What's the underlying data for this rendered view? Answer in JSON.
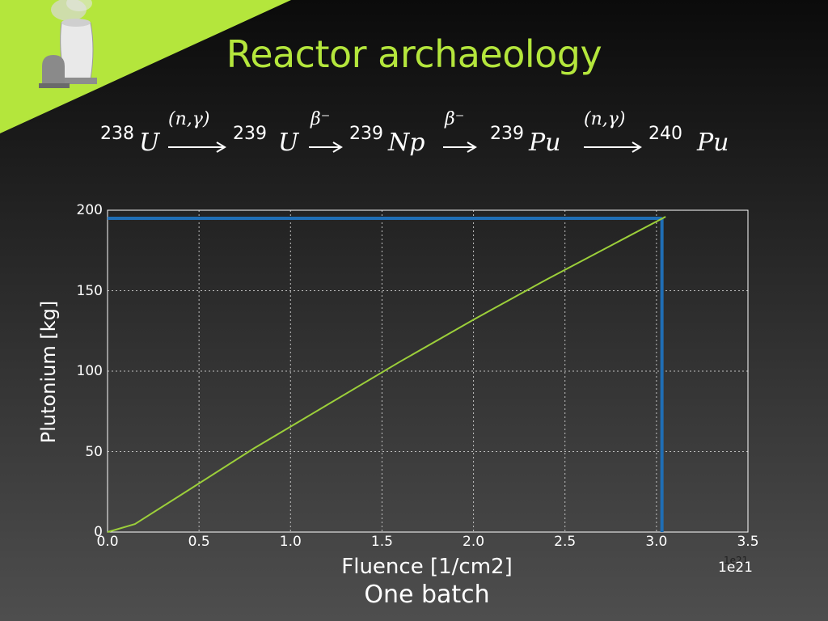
{
  "slide": {
    "title": "Reactor archaeology",
    "caption": "One batch",
    "colors": {
      "accent": "#b4e63c",
      "series": "#9ccf3a",
      "marker_lines": "#1f6eb5"
    }
  },
  "equation": {
    "terms": [
      {
        "mass": "238",
        "symbol": "U"
      },
      {
        "mass": "239",
        "symbol": "U"
      },
      {
        "mass": "239",
        "symbol": "Np"
      },
      {
        "mass": "239",
        "symbol": "Pu"
      },
      {
        "mass": "240",
        "symbol": "Pu"
      }
    ],
    "arrows": [
      "(n,γ)",
      "β⁻",
      "β⁻",
      "(n,γ)"
    ]
  },
  "chart_data": {
    "type": "line",
    "xlabel": "Fluence [1/cm2]",
    "ylabel": "Plutonium [kg]",
    "x_offset_label": "1e21",
    "x_offset_label_ghost": "1e21",
    "xlim": [
      0,
      3.5
    ],
    "ylim": [
      0,
      200
    ],
    "xticks": [
      "0.0",
      "0.5",
      "1.0",
      "1.5",
      "2.0",
      "2.5",
      "3.0",
      "3.5"
    ],
    "yticks": [
      "0",
      "50",
      "100",
      "150",
      "200"
    ],
    "grid": true,
    "series": [
      {
        "x": [
          0,
          0.15,
          0.4,
          0.8,
          1.2,
          1.6,
          2.0,
          2.4,
          2.8,
          3.05
        ],
        "y": [
          0,
          5,
          23,
          52,
          79,
          106,
          132,
          157,
          181,
          196
        ]
      }
    ],
    "marker_lines": {
      "horizontal_y": 195,
      "vertical_x": 3.03
    }
  }
}
